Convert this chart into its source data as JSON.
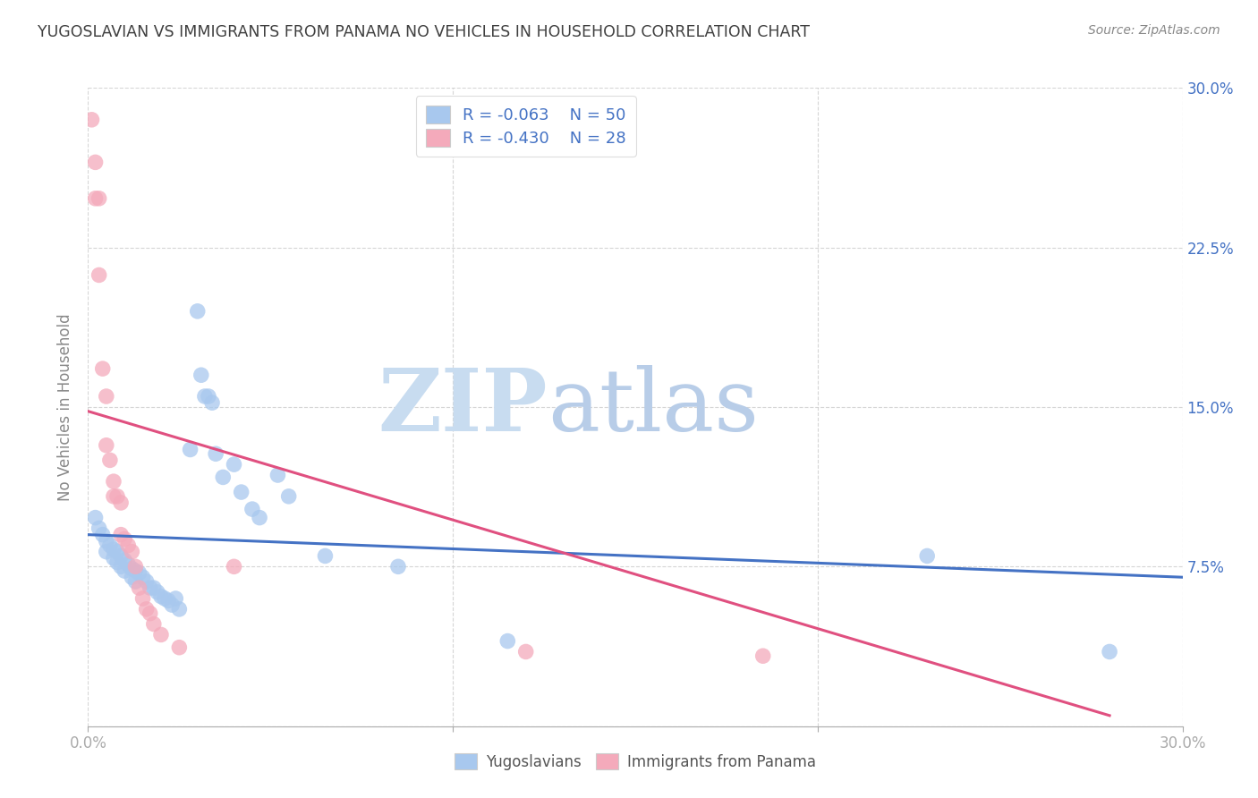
{
  "title": "YUGOSLAVIAN VS IMMIGRANTS FROM PANAMA NO VEHICLES IN HOUSEHOLD CORRELATION CHART",
  "source": "Source: ZipAtlas.com",
  "ylabel": "No Vehicles in Household",
  "watermark_zip": "ZIP",
  "watermark_atlas": "atlas",
  "xmin": 0.0,
  "xmax": 0.3,
  "ymin": 0.0,
  "ymax": 0.3,
  "yticks": [
    0.0,
    0.075,
    0.15,
    0.225,
    0.3
  ],
  "ytick_labels": [
    "",
    "7.5%",
    "15.0%",
    "22.5%",
    "30.0%"
  ],
  "xtick_positions": [
    0.0,
    0.1,
    0.2,
    0.3
  ],
  "xtick_labels": [
    "0.0%",
    "",
    "",
    "30.0%"
  ],
  "legend_labels": [
    "Yugoslavians",
    "Immigrants from Panama"
  ],
  "r_blue": -0.063,
  "n_blue": 50,
  "r_pink": -0.43,
  "n_pink": 28,
  "blue_color": "#A8C8EE",
  "pink_color": "#F4AABB",
  "blue_line_color": "#4472C4",
  "pink_line_color": "#E05080",
  "title_color": "#404040",
  "source_color": "#888888",
  "axis_label_color": "#888888",
  "grid_color": "#CCCCCC",
  "tick_color": "#AAAAAA",
  "legend_text_color": "#4472C4",
  "blue_scatter": [
    [
      0.002,
      0.098
    ],
    [
      0.003,
      0.093
    ],
    [
      0.004,
      0.09
    ],
    [
      0.005,
      0.087
    ],
    [
      0.005,
      0.082
    ],
    [
      0.006,
      0.085
    ],
    [
      0.007,
      0.083
    ],
    [
      0.007,
      0.079
    ],
    [
      0.008,
      0.082
    ],
    [
      0.008,
      0.077
    ],
    [
      0.009,
      0.08
    ],
    [
      0.009,
      0.075
    ],
    [
      0.01,
      0.078
    ],
    [
      0.01,
      0.073
    ],
    [
      0.011,
      0.076
    ],
    [
      0.012,
      0.074
    ],
    [
      0.012,
      0.07
    ],
    [
      0.013,
      0.073
    ],
    [
      0.013,
      0.068
    ],
    [
      0.014,
      0.072
    ],
    [
      0.015,
      0.07
    ],
    [
      0.016,
      0.068
    ],
    [
      0.017,
      0.065
    ],
    [
      0.018,
      0.065
    ],
    [
      0.019,
      0.063
    ],
    [
      0.02,
      0.061
    ],
    [
      0.021,
      0.06
    ],
    [
      0.022,
      0.059
    ],
    [
      0.023,
      0.057
    ],
    [
      0.024,
      0.06
    ],
    [
      0.025,
      0.055
    ],
    [
      0.028,
      0.13
    ],
    [
      0.03,
      0.195
    ],
    [
      0.031,
      0.165
    ],
    [
      0.032,
      0.155
    ],
    [
      0.033,
      0.155
    ],
    [
      0.034,
      0.152
    ],
    [
      0.035,
      0.128
    ],
    [
      0.037,
      0.117
    ],
    [
      0.04,
      0.123
    ],
    [
      0.042,
      0.11
    ],
    [
      0.045,
      0.102
    ],
    [
      0.047,
      0.098
    ],
    [
      0.052,
      0.118
    ],
    [
      0.055,
      0.108
    ],
    [
      0.065,
      0.08
    ],
    [
      0.085,
      0.075
    ],
    [
      0.115,
      0.04
    ],
    [
      0.23,
      0.08
    ],
    [
      0.28,
      0.035
    ]
  ],
  "pink_scatter": [
    [
      0.001,
      0.285
    ],
    [
      0.002,
      0.265
    ],
    [
      0.002,
      0.248
    ],
    [
      0.003,
      0.248
    ],
    [
      0.003,
      0.212
    ],
    [
      0.004,
      0.168
    ],
    [
      0.005,
      0.155
    ],
    [
      0.005,
      0.132
    ],
    [
      0.006,
      0.125
    ],
    [
      0.007,
      0.115
    ],
    [
      0.007,
      0.108
    ],
    [
      0.008,
      0.108
    ],
    [
      0.009,
      0.105
    ],
    [
      0.009,
      0.09
    ],
    [
      0.01,
      0.088
    ],
    [
      0.011,
      0.085
    ],
    [
      0.012,
      0.082
    ],
    [
      0.013,
      0.075
    ],
    [
      0.014,
      0.065
    ],
    [
      0.015,
      0.06
    ],
    [
      0.016,
      0.055
    ],
    [
      0.017,
      0.053
    ],
    [
      0.018,
      0.048
    ],
    [
      0.02,
      0.043
    ],
    [
      0.025,
      0.037
    ],
    [
      0.04,
      0.075
    ],
    [
      0.12,
      0.035
    ],
    [
      0.185,
      0.033
    ]
  ],
  "blue_trend_x": [
    0.0,
    0.3
  ],
  "blue_trend_y": [
    0.09,
    0.07
  ],
  "pink_trend_x": [
    0.0,
    0.28
  ],
  "pink_trend_y": [
    0.148,
    0.005
  ]
}
